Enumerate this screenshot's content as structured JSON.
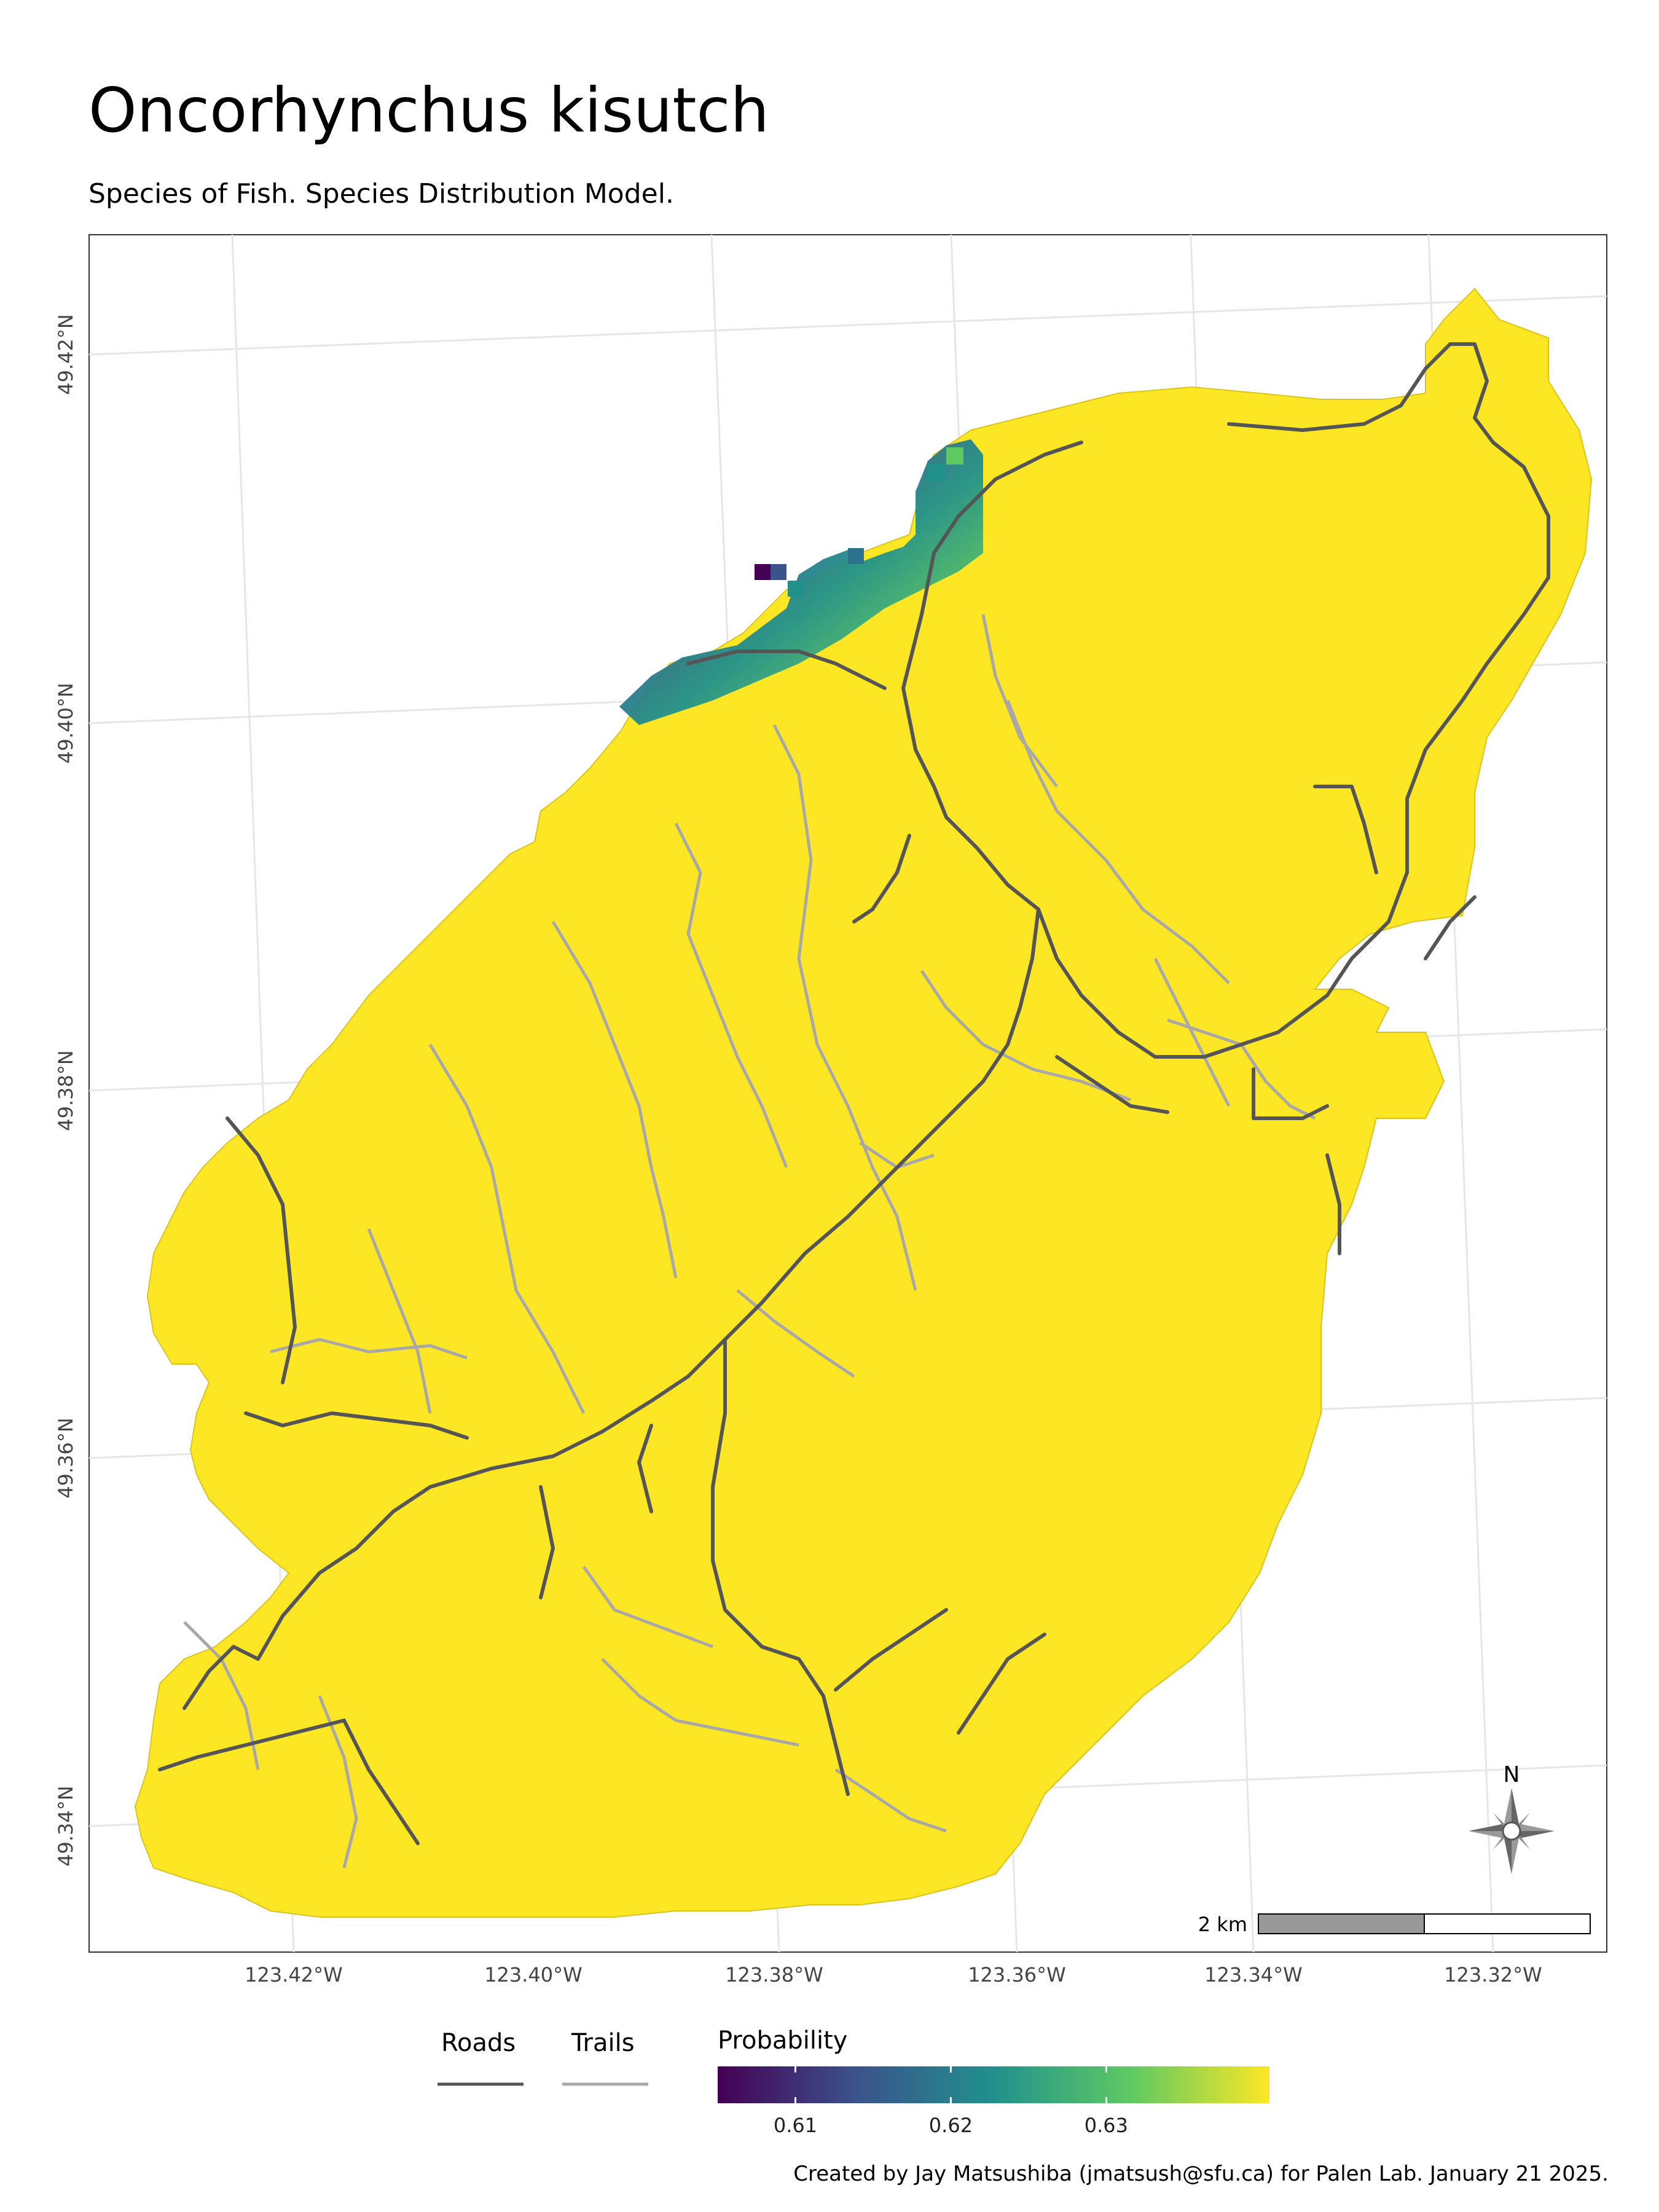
{
  "title": "Oncorhynchus kisutch",
  "subtitle": "Species of Fish. Species Distribution Model.",
  "axes": {
    "y_ticks": [
      "49.42°N",
      "49.40°N",
      "49.38°N",
      "49.36°N",
      "49.34°N"
    ],
    "x_ticks": [
      "123.42°W",
      "123.40°W",
      "123.38°W",
      "123.36°W",
      "123.34°W",
      "123.32°W"
    ]
  },
  "map": {
    "fill_color": "#fde725",
    "road_color": "#555555",
    "trail_color": "#a8a8a8",
    "north_arrow_label": "N",
    "scale_bar_label": "2 km"
  },
  "legend": {
    "roads_label": "Roads",
    "trails_label": "Trails",
    "probability_title": "Probability",
    "probability_ticks": [
      "0.61",
      "0.62",
      "0.63"
    ],
    "probability_tick_values": [
      0.61,
      0.62,
      0.63
    ],
    "probability_range": [
      0.605,
      0.6405
    ],
    "colormap": [
      "#440154",
      "#3b528b",
      "#21918c",
      "#5ec962",
      "#fde725"
    ]
  },
  "credit": "Created by Jay Matsushiba (jmatsush@sfu.ca) for Palen Lab. January 21 2025."
}
